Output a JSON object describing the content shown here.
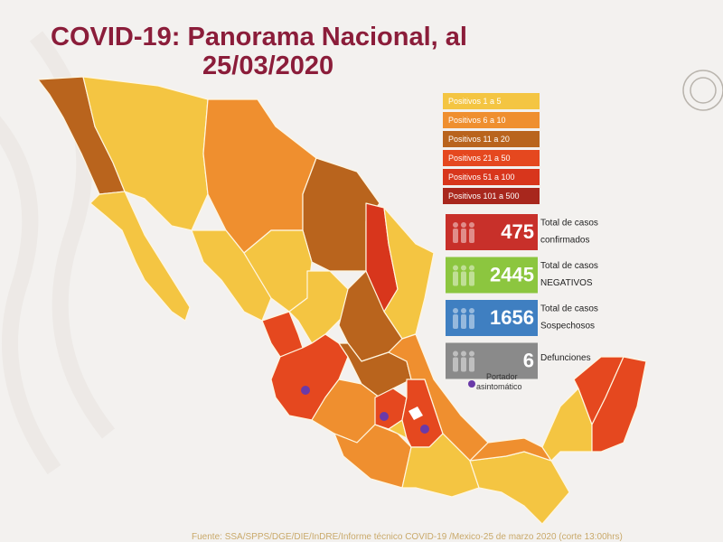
{
  "header": {
    "title_lines": [
      "COVID-19: Panorama Nacional, al",
      "25/03/2020"
    ]
  },
  "legend": [
    {
      "label": "Positivos 1 a 5",
      "color": "#f4c542"
    },
    {
      "label": "Positivos 6 a 10",
      "color": "#ef8f2f"
    },
    {
      "label": "Positivos 11 a 20",
      "color": "#b9641d"
    },
    {
      "label": "Positivos 21 a 50",
      "color": "#e5481f"
    },
    {
      "label": "Positivos 51 a 100",
      "color": "#d8361c"
    },
    {
      "label": "Positivos 101 a 500",
      "color": "#a8271d"
    }
  ],
  "stats": [
    {
      "value": 475,
      "label_lines": [
        "Total de casos",
        "confirmados"
      ],
      "color": "#c8302a"
    },
    {
      "value": 2445,
      "label_lines": [
        "Total de casos",
        "NEGATIVOS"
      ],
      "color": "#8cc63f"
    },
    {
      "value": 1656,
      "label_lines": [
        "Total de casos",
        "Sospechosos"
      ],
      "color": "#3f7fc1"
    },
    {
      "value": 6,
      "label_lines": [
        "Defunciones"
      ],
      "color": "#8a8a8a"
    }
  ],
  "marker_note_lines": [
    "Portador",
    "asintomático"
  ],
  "source": "Fuente: SSA/SPPS/DGE/DIE/InDRE/Informe técnico COVID-19 /Mexico-25 de marzo 2020 (corte 13:00hrs)"
}
